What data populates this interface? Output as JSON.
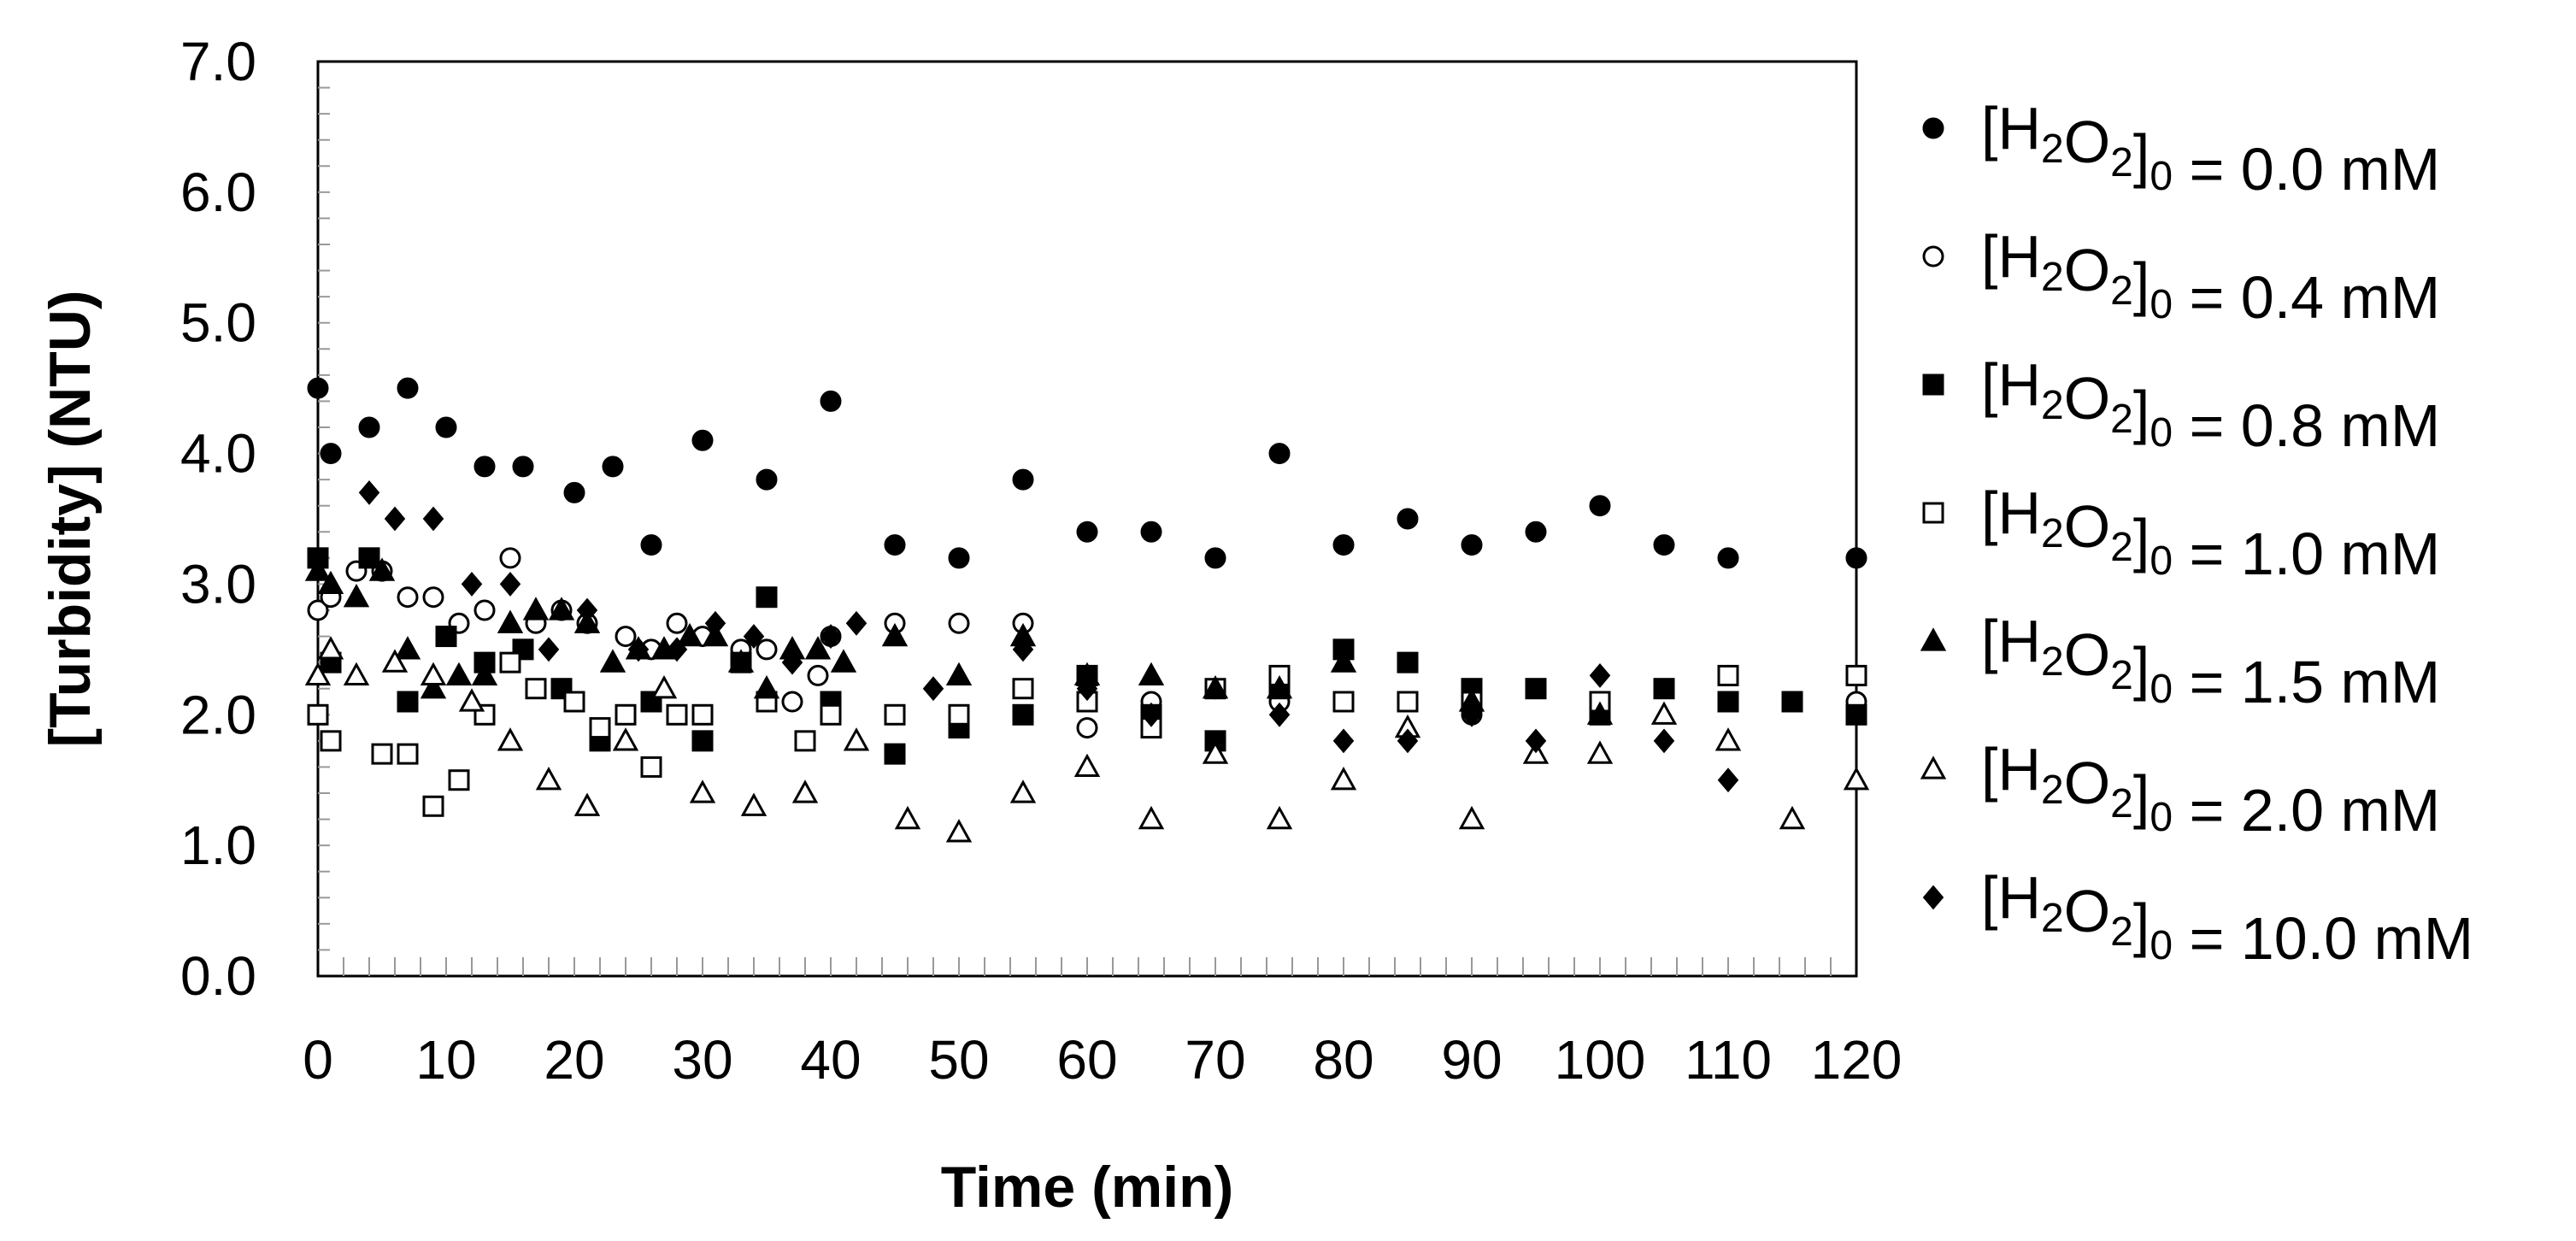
{
  "chart_data": {
    "type": "scatter",
    "title": "",
    "xlabel": "Time (min)",
    "ylabel": "[Turbidity] (NTU)",
    "xlim": [
      0,
      120
    ],
    "ylim": [
      0.0,
      7.0
    ],
    "xticks": [
      "0",
      "10",
      "20",
      "30",
      "40",
      "50",
      "60",
      "70",
      "80",
      "90",
      "100",
      "110",
      "120"
    ],
    "yticks": [
      "0.0",
      "1.0",
      "2.0",
      "3.0",
      "4.0",
      "5.0",
      "6.0",
      "7.0"
    ],
    "grid": false,
    "legend_position": "right",
    "series": [
      {
        "label_prefix": "[H",
        "sub1": "2",
        "mid": "O",
        "sub2": "2",
        "close": "]",
        "sub3": "0",
        "suffix": " = 0.0 mM",
        "marker": "circle-filled",
        "points": [
          [
            0,
            4.5
          ],
          [
            1,
            4.0
          ],
          [
            4,
            4.2
          ],
          [
            7,
            4.5
          ],
          [
            10,
            4.2
          ],
          [
            13,
            3.9
          ],
          [
            16,
            3.9
          ],
          [
            20,
            3.7
          ],
          [
            23,
            3.9
          ],
          [
            26,
            3.3
          ],
          [
            30,
            4.1
          ],
          [
            35,
            3.8
          ],
          [
            40,
            4.4
          ],
          [
            45,
            3.3
          ],
          [
            50,
            3.2
          ],
          [
            55,
            3.8
          ],
          [
            60,
            3.4
          ],
          [
            65,
            3.4
          ],
          [
            70,
            3.2
          ],
          [
            75,
            4.0
          ],
          [
            80,
            3.3
          ],
          [
            85,
            3.5
          ],
          [
            90,
            3.3
          ],
          [
            95,
            3.4
          ],
          [
            100,
            3.6
          ],
          [
            105,
            3.3
          ],
          [
            110,
            3.2
          ],
          [
            120,
            3.2
          ]
        ]
      },
      {
        "label_prefix": "[H",
        "sub1": "2",
        "mid": "O",
        "sub2": "2",
        "close": "]",
        "sub3": "0",
        "suffix": " = 0.4 mM",
        "marker": "circle-open",
        "points": [
          [
            0,
            2.8
          ],
          [
            1,
            2.9
          ],
          [
            3,
            3.1
          ],
          [
            5,
            3.1
          ],
          [
            7,
            2.9
          ],
          [
            9,
            2.9
          ],
          [
            11,
            2.7
          ],
          [
            13,
            2.8
          ],
          [
            15,
            3.2
          ],
          [
            17,
            2.7
          ],
          [
            19,
            2.8
          ],
          [
            21,
            2.7
          ],
          [
            24,
            2.6
          ],
          [
            26,
            2.5
          ],
          [
            28,
            2.7
          ],
          [
            30,
            2.6
          ],
          [
            33,
            2.5
          ],
          [
            35,
            2.5
          ],
          [
            37,
            2.1
          ],
          [
            39,
            2.3
          ],
          [
            40,
            2.6
          ],
          [
            45,
            2.7
          ],
          [
            50,
            2.7
          ],
          [
            55,
            2.7
          ],
          [
            60,
            1.9
          ],
          [
            65,
            2.1
          ],
          [
            70,
            2.2
          ],
          [
            75,
            2.1
          ],
          [
            80,
            2.1
          ],
          [
            85,
            2.1
          ],
          [
            90,
            2.0
          ],
          [
            100,
            2.1
          ],
          [
            110,
            2.3
          ],
          [
            120,
            2.1
          ]
        ]
      },
      {
        "label_prefix": "[H",
        "sub1": "2",
        "mid": "O",
        "sub2": "2",
        "close": "]",
        "sub3": "0",
        "suffix": " = 0.8 mM",
        "marker": "square-filled",
        "points": [
          [
            0,
            3.2
          ],
          [
            1,
            2.4
          ],
          [
            4,
            3.2
          ],
          [
            7,
            2.1
          ],
          [
            10,
            2.6
          ],
          [
            13,
            2.4
          ],
          [
            16,
            2.5
          ],
          [
            19,
            2.2
          ],
          [
            22,
            1.8
          ],
          [
            26,
            2.1
          ],
          [
            30,
            1.8
          ],
          [
            33,
            2.4
          ],
          [
            35,
            2.9
          ],
          [
            40,
            2.1
          ],
          [
            45,
            1.7
          ],
          [
            50,
            1.9
          ],
          [
            55,
            2.0
          ],
          [
            60,
            2.3
          ],
          [
            65,
            2.0
          ],
          [
            70,
            1.8
          ],
          [
            75,
            2.2
          ],
          [
            80,
            2.5
          ],
          [
            85,
            2.4
          ],
          [
            90,
            2.2
          ],
          [
            95,
            2.2
          ],
          [
            100,
            2.0
          ],
          [
            105,
            2.2
          ],
          [
            110,
            2.1
          ],
          [
            115,
            2.1
          ],
          [
            120,
            2.0
          ]
        ]
      },
      {
        "label_prefix": "[H",
        "sub1": "2",
        "mid": "O",
        "sub2": "2",
        "close": "]",
        "sub3": "0",
        "suffix": " = 1.0 mM",
        "marker": "square-open",
        "points": [
          [
            0,
            2.0
          ],
          [
            1,
            1.8
          ],
          [
            5,
            1.7
          ],
          [
            7,
            1.7
          ],
          [
            9,
            1.3
          ],
          [
            11,
            1.5
          ],
          [
            13,
            2.0
          ],
          [
            15,
            2.4
          ],
          [
            17,
            2.2
          ],
          [
            20,
            2.1
          ],
          [
            22,
            1.9
          ],
          [
            24,
            2.0
          ],
          [
            26,
            1.6
          ],
          [
            28,
            2.0
          ],
          [
            30,
            2.0
          ],
          [
            35,
            2.1
          ],
          [
            38,
            1.8
          ],
          [
            40,
            2.0
          ],
          [
            45,
            2.0
          ],
          [
            50,
            2.0
          ],
          [
            55,
            2.2
          ],
          [
            60,
            2.1
          ],
          [
            65,
            1.9
          ],
          [
            70,
            2.2
          ],
          [
            75,
            2.3
          ],
          [
            80,
            2.1
          ],
          [
            85,
            2.1
          ],
          [
            90,
            2.1
          ],
          [
            100,
            2.1
          ],
          [
            110,
            2.3
          ],
          [
            120,
            2.3
          ]
        ]
      },
      {
        "label_prefix": "[H",
        "sub1": "2",
        "mid": "O",
        "sub2": "2",
        "close": "]",
        "sub3": "0",
        "suffix": " = 1.5 mM",
        "marker": "triangle-filled",
        "points": [
          [
            0,
            3.1
          ],
          [
            1,
            3.0
          ],
          [
            3,
            2.9
          ],
          [
            5,
            3.1
          ],
          [
            7,
            2.5
          ],
          [
            9,
            2.2
          ],
          [
            11,
            2.3
          ],
          [
            13,
            2.3
          ],
          [
            15,
            2.7
          ],
          [
            17,
            2.8
          ],
          [
            19,
            2.8
          ],
          [
            21,
            2.7
          ],
          [
            23,
            2.4
          ],
          [
            25,
            2.5
          ],
          [
            27,
            2.5
          ],
          [
            29,
            2.6
          ],
          [
            31,
            2.6
          ],
          [
            33,
            2.4
          ],
          [
            35,
            2.2
          ],
          [
            37,
            2.5
          ],
          [
            39,
            2.5
          ],
          [
            41,
            2.4
          ],
          [
            45,
            2.6
          ],
          [
            50,
            2.3
          ],
          [
            55,
            2.6
          ],
          [
            60,
            2.3
          ],
          [
            65,
            2.3
          ],
          [
            70,
            2.2
          ],
          [
            75,
            2.2
          ],
          [
            80,
            2.4
          ],
          [
            90,
            2.1
          ],
          [
            100,
            2.0
          ]
        ]
      },
      {
        "label_prefix": "[H",
        "sub1": "2",
        "mid": "O",
        "sub2": "2",
        "close": "]",
        "sub3": "0",
        "suffix": " = 2.0 mM",
        "marker": "triangle-open",
        "points": [
          [
            0,
            2.3
          ],
          [
            1,
            2.5
          ],
          [
            3,
            2.3
          ],
          [
            6,
            2.4
          ],
          [
            9,
            2.3
          ],
          [
            12,
            2.1
          ],
          [
            15,
            1.8
          ],
          [
            18,
            1.5
          ],
          [
            21,
            1.3
          ],
          [
            24,
            1.8
          ],
          [
            27,
            2.2
          ],
          [
            30,
            1.4
          ],
          [
            34,
            1.3
          ],
          [
            38,
            1.4
          ],
          [
            42,
            1.8
          ],
          [
            46,
            1.2
          ],
          [
            50,
            1.1
          ],
          [
            55,
            1.4
          ],
          [
            60,
            1.6
          ],
          [
            65,
            1.2
          ],
          [
            70,
            1.7
          ],
          [
            75,
            1.2
          ],
          [
            80,
            1.5
          ],
          [
            85,
            1.9
          ],
          [
            90,
            1.2
          ],
          [
            95,
            1.7
          ],
          [
            100,
            1.7
          ],
          [
            105,
            2.0
          ],
          [
            110,
            1.8
          ],
          [
            115,
            1.2
          ],
          [
            120,
            1.5
          ]
        ]
      },
      {
        "label_prefix": "[H",
        "sub1": "2",
        "mid": "O",
        "sub2": "2",
        "close": "]",
        "sub3": "0",
        "suffix": " = 10.0 mM",
        "marker": "diamond-filled",
        "points": [
          [
            4,
            3.7
          ],
          [
            6,
            3.5
          ],
          [
            9,
            3.5
          ],
          [
            12,
            3.0
          ],
          [
            15,
            3.0
          ],
          [
            18,
            2.5
          ],
          [
            21,
            2.8
          ],
          [
            25,
            2.5
          ],
          [
            28,
            2.5
          ],
          [
            31,
            2.7
          ],
          [
            34,
            2.6
          ],
          [
            37,
            2.4
          ],
          [
            40,
            2.6
          ],
          [
            42,
            2.7
          ],
          [
            48,
            2.2
          ],
          [
            55,
            2.5
          ],
          [
            60,
            2.2
          ],
          [
            65,
            2.0
          ],
          [
            75,
            2.0
          ],
          [
            80,
            1.8
          ],
          [
            85,
            1.8
          ],
          [
            90,
            2.0
          ],
          [
            95,
            1.8
          ],
          [
            100,
            2.3
          ],
          [
            105,
            1.8
          ],
          [
            110,
            1.5
          ]
        ]
      }
    ]
  }
}
